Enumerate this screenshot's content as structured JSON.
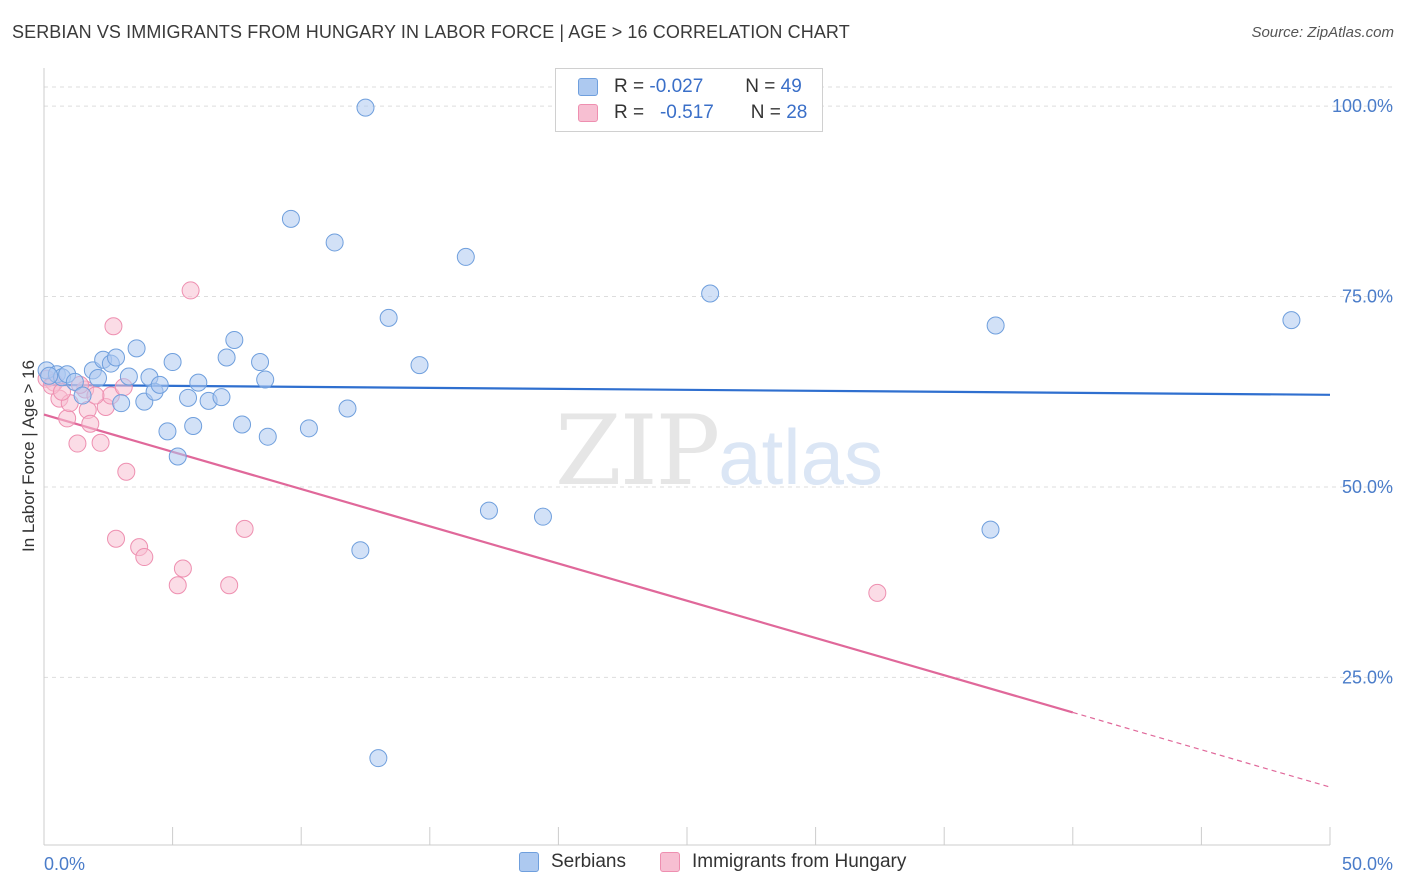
{
  "header": {
    "title": "SERBIAN VS IMMIGRANTS FROM HUNGARY IN LABOR FORCE | AGE > 16 CORRELATION CHART",
    "source": "Source: ZipAtlas.com"
  },
  "legend_box": {
    "rows": [
      {
        "r_label": "R =",
        "r_value": "-0.027",
        "n_label": "N =",
        "n_value": "49"
      },
      {
        "r_label": "R =",
        "r_value": "-0.517",
        "n_label": "N =",
        "n_value": "28"
      }
    ]
  },
  "watermark": {
    "zip": "ZIP",
    "atlas": "atlas"
  },
  "colors": {
    "serbians_fill": "#adc9f0",
    "serbians_stroke": "#6f9fdd",
    "serbians_line": "#2f6fcf",
    "hungary_fill": "#f7bfd2",
    "hungary_stroke": "#ee8fb0",
    "hungary_line": "#e0689a",
    "tick_text": "#4a7cc9",
    "grid": "#dddddd"
  },
  "chart_data": {
    "type": "scatter",
    "title": "SERBIAN VS IMMIGRANTS FROM HUNGARY IN LABOR FORCE | AGE > 16 CORRELATION CHART",
    "xlabel": "",
    "ylabel": "In Labor Force | Age > 16",
    "xlim": [
      0,
      50
    ],
    "ylim": [
      3,
      105
    ],
    "x_tick_labels": [
      "0.0%",
      "50.0%"
    ],
    "y_ticks": [
      25,
      50,
      75,
      100
    ],
    "y_tick_labels": [
      "25.0%",
      "50.0%",
      "75.0%",
      "100.0%"
    ],
    "legend_placement": "bottom-center",
    "series": [
      {
        "name": "Serbians",
        "points": [
          [
            0.1,
            65.3
          ],
          [
            0.5,
            64.8
          ],
          [
            0.7,
            64.4
          ],
          [
            0.9,
            64.8
          ],
          [
            1.2,
            63.8
          ],
          [
            1.5,
            62.0
          ],
          [
            1.9,
            65.3
          ],
          [
            2.1,
            64.3
          ],
          [
            2.3,
            66.7
          ],
          [
            2.6,
            66.2
          ],
          [
            2.8,
            67.0
          ],
          [
            3.0,
            61.0
          ],
          [
            3.3,
            64.5
          ],
          [
            3.6,
            68.2
          ],
          [
            3.9,
            61.2
          ],
          [
            4.1,
            64.4
          ],
          [
            4.3,
            62.5
          ],
          [
            4.5,
            63.4
          ],
          [
            4.8,
            57.3
          ],
          [
            5.0,
            66.4
          ],
          [
            5.2,
            54.0
          ],
          [
            5.6,
            61.7
          ],
          [
            5.8,
            58.0
          ],
          [
            6.0,
            63.7
          ],
          [
            6.4,
            61.3
          ],
          [
            6.9,
            61.8
          ],
          [
            7.1,
            67.0
          ],
          [
            7.4,
            69.3
          ],
          [
            7.7,
            58.2
          ],
          [
            8.4,
            66.4
          ],
          [
            8.6,
            64.1
          ],
          [
            8.7,
            56.6
          ],
          [
            9.6,
            85.2
          ],
          [
            10.3,
            57.7
          ],
          [
            11.3,
            82.1
          ],
          [
            11.8,
            60.3
          ],
          [
            12.3,
            41.7
          ],
          [
            12.5,
            99.8
          ],
          [
            13.0,
            14.4
          ],
          [
            13.4,
            72.2
          ],
          [
            14.6,
            66.0
          ],
          [
            16.4,
            80.2
          ],
          [
            17.3,
            46.9
          ],
          [
            19.4,
            46.1
          ],
          [
            25.9,
            75.4
          ],
          [
            36.8,
            44.4
          ],
          [
            37.0,
            71.2
          ],
          [
            48.5,
            71.9
          ],
          [
            0.2,
            64.6
          ]
        ],
        "trend": {
          "x": [
            0,
            50
          ],
          "y": [
            63.4,
            62.1
          ]
        }
      },
      {
        "name": "Immigrants from Hungary",
        "points": [
          [
            0.1,
            64.2
          ],
          [
            0.4,
            63.7
          ],
          [
            0.6,
            61.6
          ],
          [
            0.9,
            59.0
          ],
          [
            1.0,
            61.0
          ],
          [
            1.3,
            55.7
          ],
          [
            1.6,
            62.8
          ],
          [
            1.7,
            60.1
          ],
          [
            1.8,
            58.3
          ],
          [
            2.2,
            55.8
          ],
          [
            2.4,
            60.5
          ],
          [
            2.6,
            62.0
          ],
          [
            2.7,
            71.1
          ],
          [
            2.8,
            43.2
          ],
          [
            3.1,
            63.1
          ],
          [
            3.2,
            52.0
          ],
          [
            3.7,
            42.1
          ],
          [
            3.9,
            40.8
          ],
          [
            5.2,
            37.1
          ],
          [
            5.4,
            39.3
          ],
          [
            5.7,
            75.8
          ],
          [
            7.2,
            37.1
          ],
          [
            7.8,
            44.5
          ],
          [
            0.3,
            63.3
          ],
          [
            0.7,
            62.5
          ],
          [
            1.4,
            63.4
          ],
          [
            2.0,
            62.0
          ],
          [
            32.4,
            36.1
          ]
        ],
        "trend_solid": {
          "x": [
            0,
            40
          ],
          "y": [
            59.5,
            20.4
          ]
        },
        "trend_dashed": {
          "x": [
            40,
            50
          ],
          "y": [
            20.4,
            10.6
          ]
        }
      }
    ]
  },
  "bottom_legend": {
    "serbians": "Serbians",
    "hungary": "Immigrants from Hungary"
  }
}
